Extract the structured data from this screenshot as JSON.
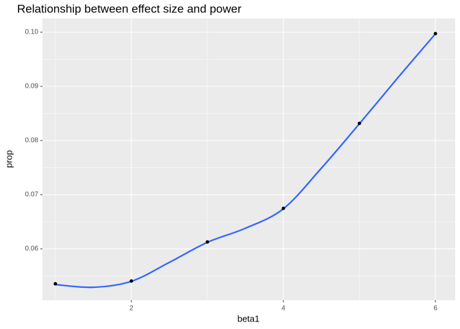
{
  "chart_data": {
    "type": "scatter",
    "title": "Relationship between effect size and power",
    "x_label": "beta1",
    "y_label": "prop",
    "x": [
      1,
      2,
      3,
      4,
      5,
      6
    ],
    "values": [
      0.05354,
      0.05405,
      0.06127,
      0.06747,
      0.08316,
      0.09975
    ],
    "color": "#000000",
    "smooth": {
      "color": "#3366ff",
      "x": [
        1,
        1.5,
        2,
        2.5,
        3,
        3.5,
        4,
        4.5,
        5,
        5.5,
        6
      ],
      "values": [
        0.0534,
        0.0529,
        0.054,
        0.0575,
        0.0612,
        0.0638,
        0.0674,
        0.0749,
        0.0831,
        0.0915,
        0.0997
      ]
    },
    "xlim": [
      0.83,
      6.26
    ],
    "ylim": [
      0.05051,
      0.10253
    ],
    "xticks": [
      2,
      4,
      6
    ],
    "yticks": [
      0.06,
      0.07,
      0.08,
      0.09,
      {
        "value": 0.1,
        "label": "0.10"
      }
    ],
    "grid": true
  }
}
